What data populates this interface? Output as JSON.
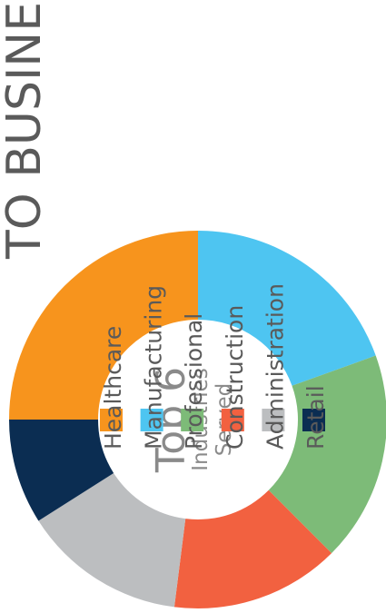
{
  "chart_data": {
    "type": "donut",
    "title": "TO BUSINESSI",
    "center_title": "Top 6",
    "center_subtitle": [
      "Industries",
      "Served"
    ],
    "categories": [
      "Healthcare",
      "Manufacturing",
      "Professional",
      "Construction",
      "Administration",
      "Retail"
    ],
    "values": [
      25,
      19.5,
      18,
      14.5,
      14,
      9
    ],
    "colors": [
      "#f7941d",
      "#4ec5f1",
      "#7dbb78",
      "#f26140",
      "#bcbec0",
      "#0b2d52"
    ]
  }
}
